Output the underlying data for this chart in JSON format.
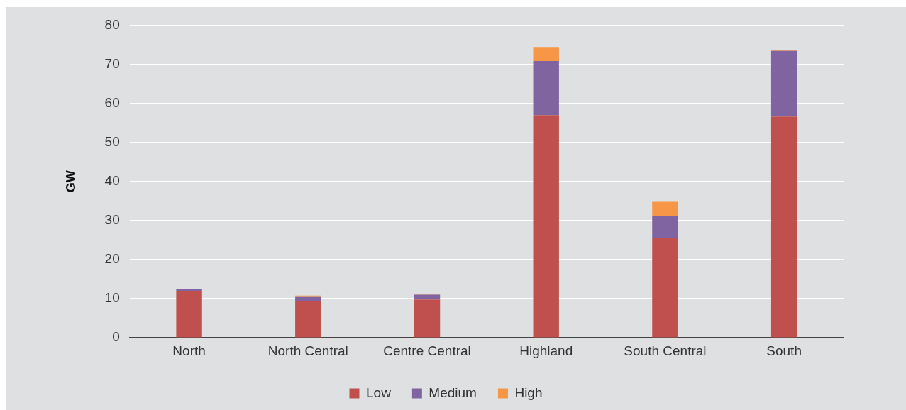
{
  "chart_data": {
    "type": "bar",
    "ylabel": "GW",
    "categories": [
      "North",
      "North Central",
      "Centre Central",
      "Highland",
      "South Central",
      "South"
    ],
    "series": [
      {
        "name": "Low",
        "color": "#c0504d",
        "values": [
          12.0,
          9.4,
          9.8,
          57.0,
          25.6,
          56.6
        ]
      },
      {
        "name": "Medium",
        "color": "#8064a2",
        "values": [
          0.5,
          1.2,
          1.2,
          13.8,
          5.5,
          16.8
        ]
      },
      {
        "name": "High",
        "color": "#f79646",
        "values": [
          null,
          0.2,
          0.3,
          3.6,
          3.7,
          0.3
        ]
      }
    ],
    "stacked": true,
    "ylim": [
      0,
      80
    ],
    "yticks": [
      0,
      10,
      20,
      30,
      40,
      50,
      60,
      70,
      80
    ],
    "grid": "y",
    "legend": "bottom"
  }
}
